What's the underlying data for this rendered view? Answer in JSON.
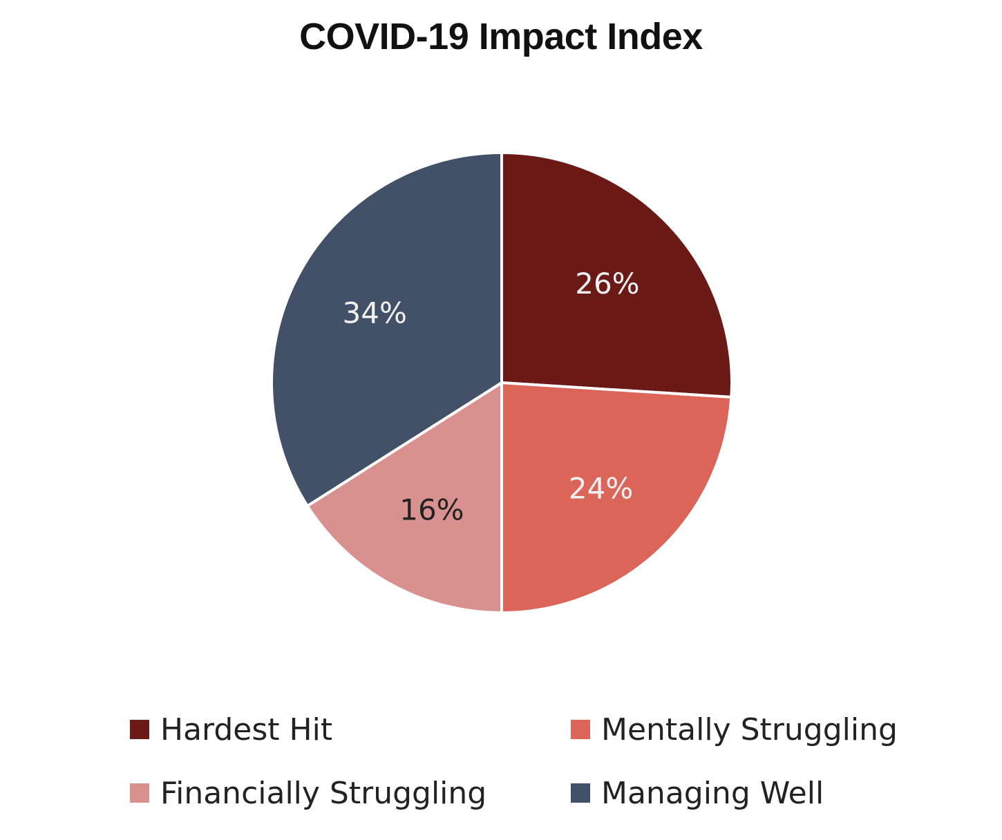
{
  "chart_data": {
    "type": "pie",
    "title": "COVID-19 Impact Index",
    "categories": [
      "Hardest Hit",
      "Mentally Struggling",
      "Financially Struggling",
      "Managing Well"
    ],
    "values": [
      26,
      24,
      16,
      34
    ],
    "labels": [
      "26%",
      "24%",
      "16%",
      "34%"
    ],
    "colors": [
      "#6b1a15",
      "#dc655a",
      "#d99190",
      "#435168"
    ],
    "label_colors": [
      "#f2f2f2",
      "#f2f2f2",
      "#222222",
      "#f2f2f2"
    ],
    "legend_position": "bottom"
  }
}
